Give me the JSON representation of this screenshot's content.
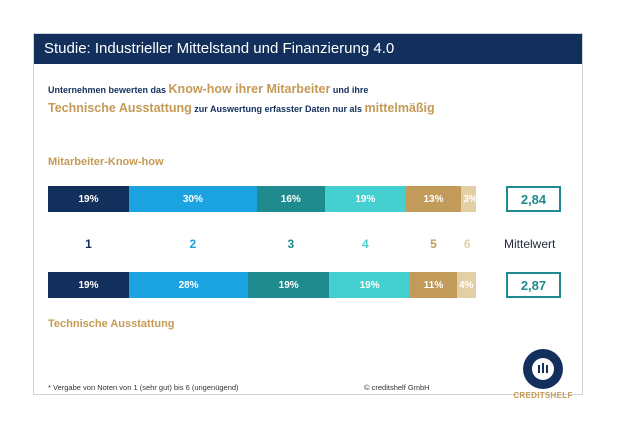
{
  "header": {
    "title": "Studie: Industrieller Mittelstand und Finanzierung 4.0"
  },
  "subtitle": {
    "line1_part1": "Unternehmen bewerten das ",
    "line1_hl": "Know-how ihrer Mitarbeiter",
    "line1_part2": " und ihre",
    "line2_hl": "Technische Ausstattung",
    "line2_part2": " zur Auswertung erfasster Daten nur als ",
    "line2_hl2": "mittelmäßig"
  },
  "chart_data": {
    "type": "bar",
    "orientation": "horizontal-stacked-100",
    "categories": [
      "1",
      "2",
      "3",
      "4",
      "5",
      "6"
    ],
    "mean_label": "Mittelwert",
    "colors": [
      "#13305c",
      "#1aa3e0",
      "#1f8b8e",
      "#45cfd0",
      "#c29b5a",
      "#e3cfa6"
    ],
    "series": [
      {
        "name": "Mitarbeiter-Know-how",
        "values": [
          19,
          30,
          16,
          19,
          13,
          3
        ],
        "labels": [
          "19%",
          "30%",
          "16%",
          "19%",
          "13%",
          "3%"
        ],
        "mean": "2,84"
      },
      {
        "name": "Technische Ausstattung",
        "values": [
          19,
          28,
          19,
          19,
          11,
          4
        ],
        "labels": [
          "19%",
          "28%",
          "19%",
          "19%",
          "11%",
          "4%"
        ],
        "mean": "2,87"
      }
    ]
  },
  "footer": {
    "footnote": "* Vergabe von Noten von 1 (sehr gut) bis 6 (ungenügend)",
    "copyright": "© creditshelf GmbH",
    "logo_text": "CREDITSHELF"
  }
}
